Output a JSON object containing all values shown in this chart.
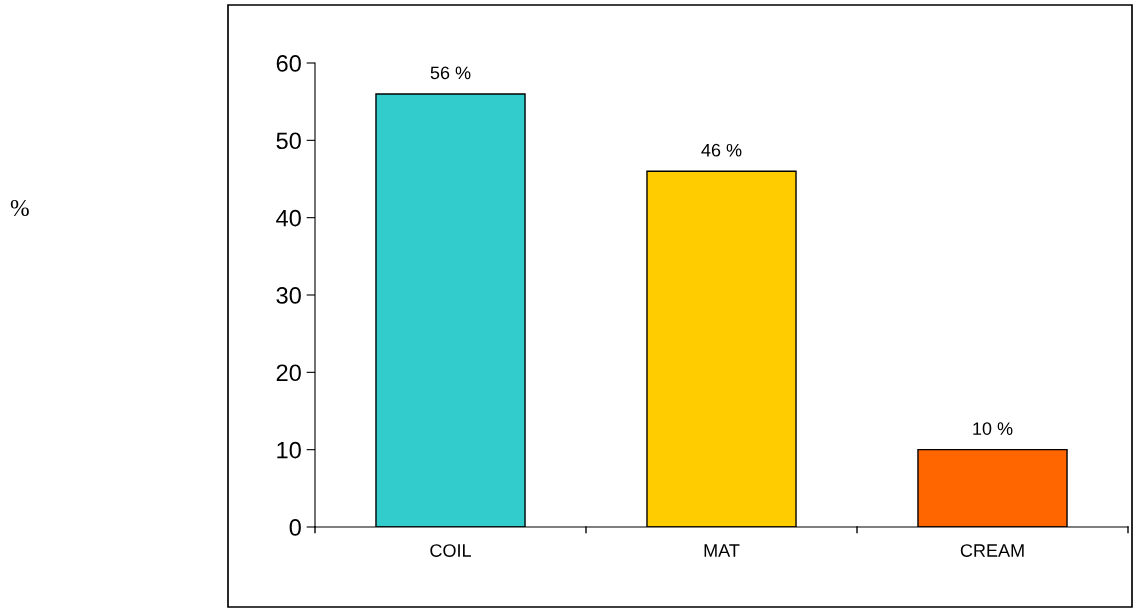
{
  "chart_data": {
    "type": "bar",
    "annotations": [
      "%"
    ],
    "categories": [
      "COIL",
      "MAT",
      "CREAM"
    ],
    "values": [
      56,
      46,
      10
    ],
    "colors": [
      "#33cccc",
      "#ffcc00",
      "#ff6600"
    ],
    "value_labels": [
      "56 %",
      "46 %",
      "10 %"
    ],
    "ylim": [
      0,
      60
    ],
    "yticks": [
      0,
      10,
      20,
      30,
      40,
      50,
      60
    ],
    "grid": false,
    "legend": false
  }
}
